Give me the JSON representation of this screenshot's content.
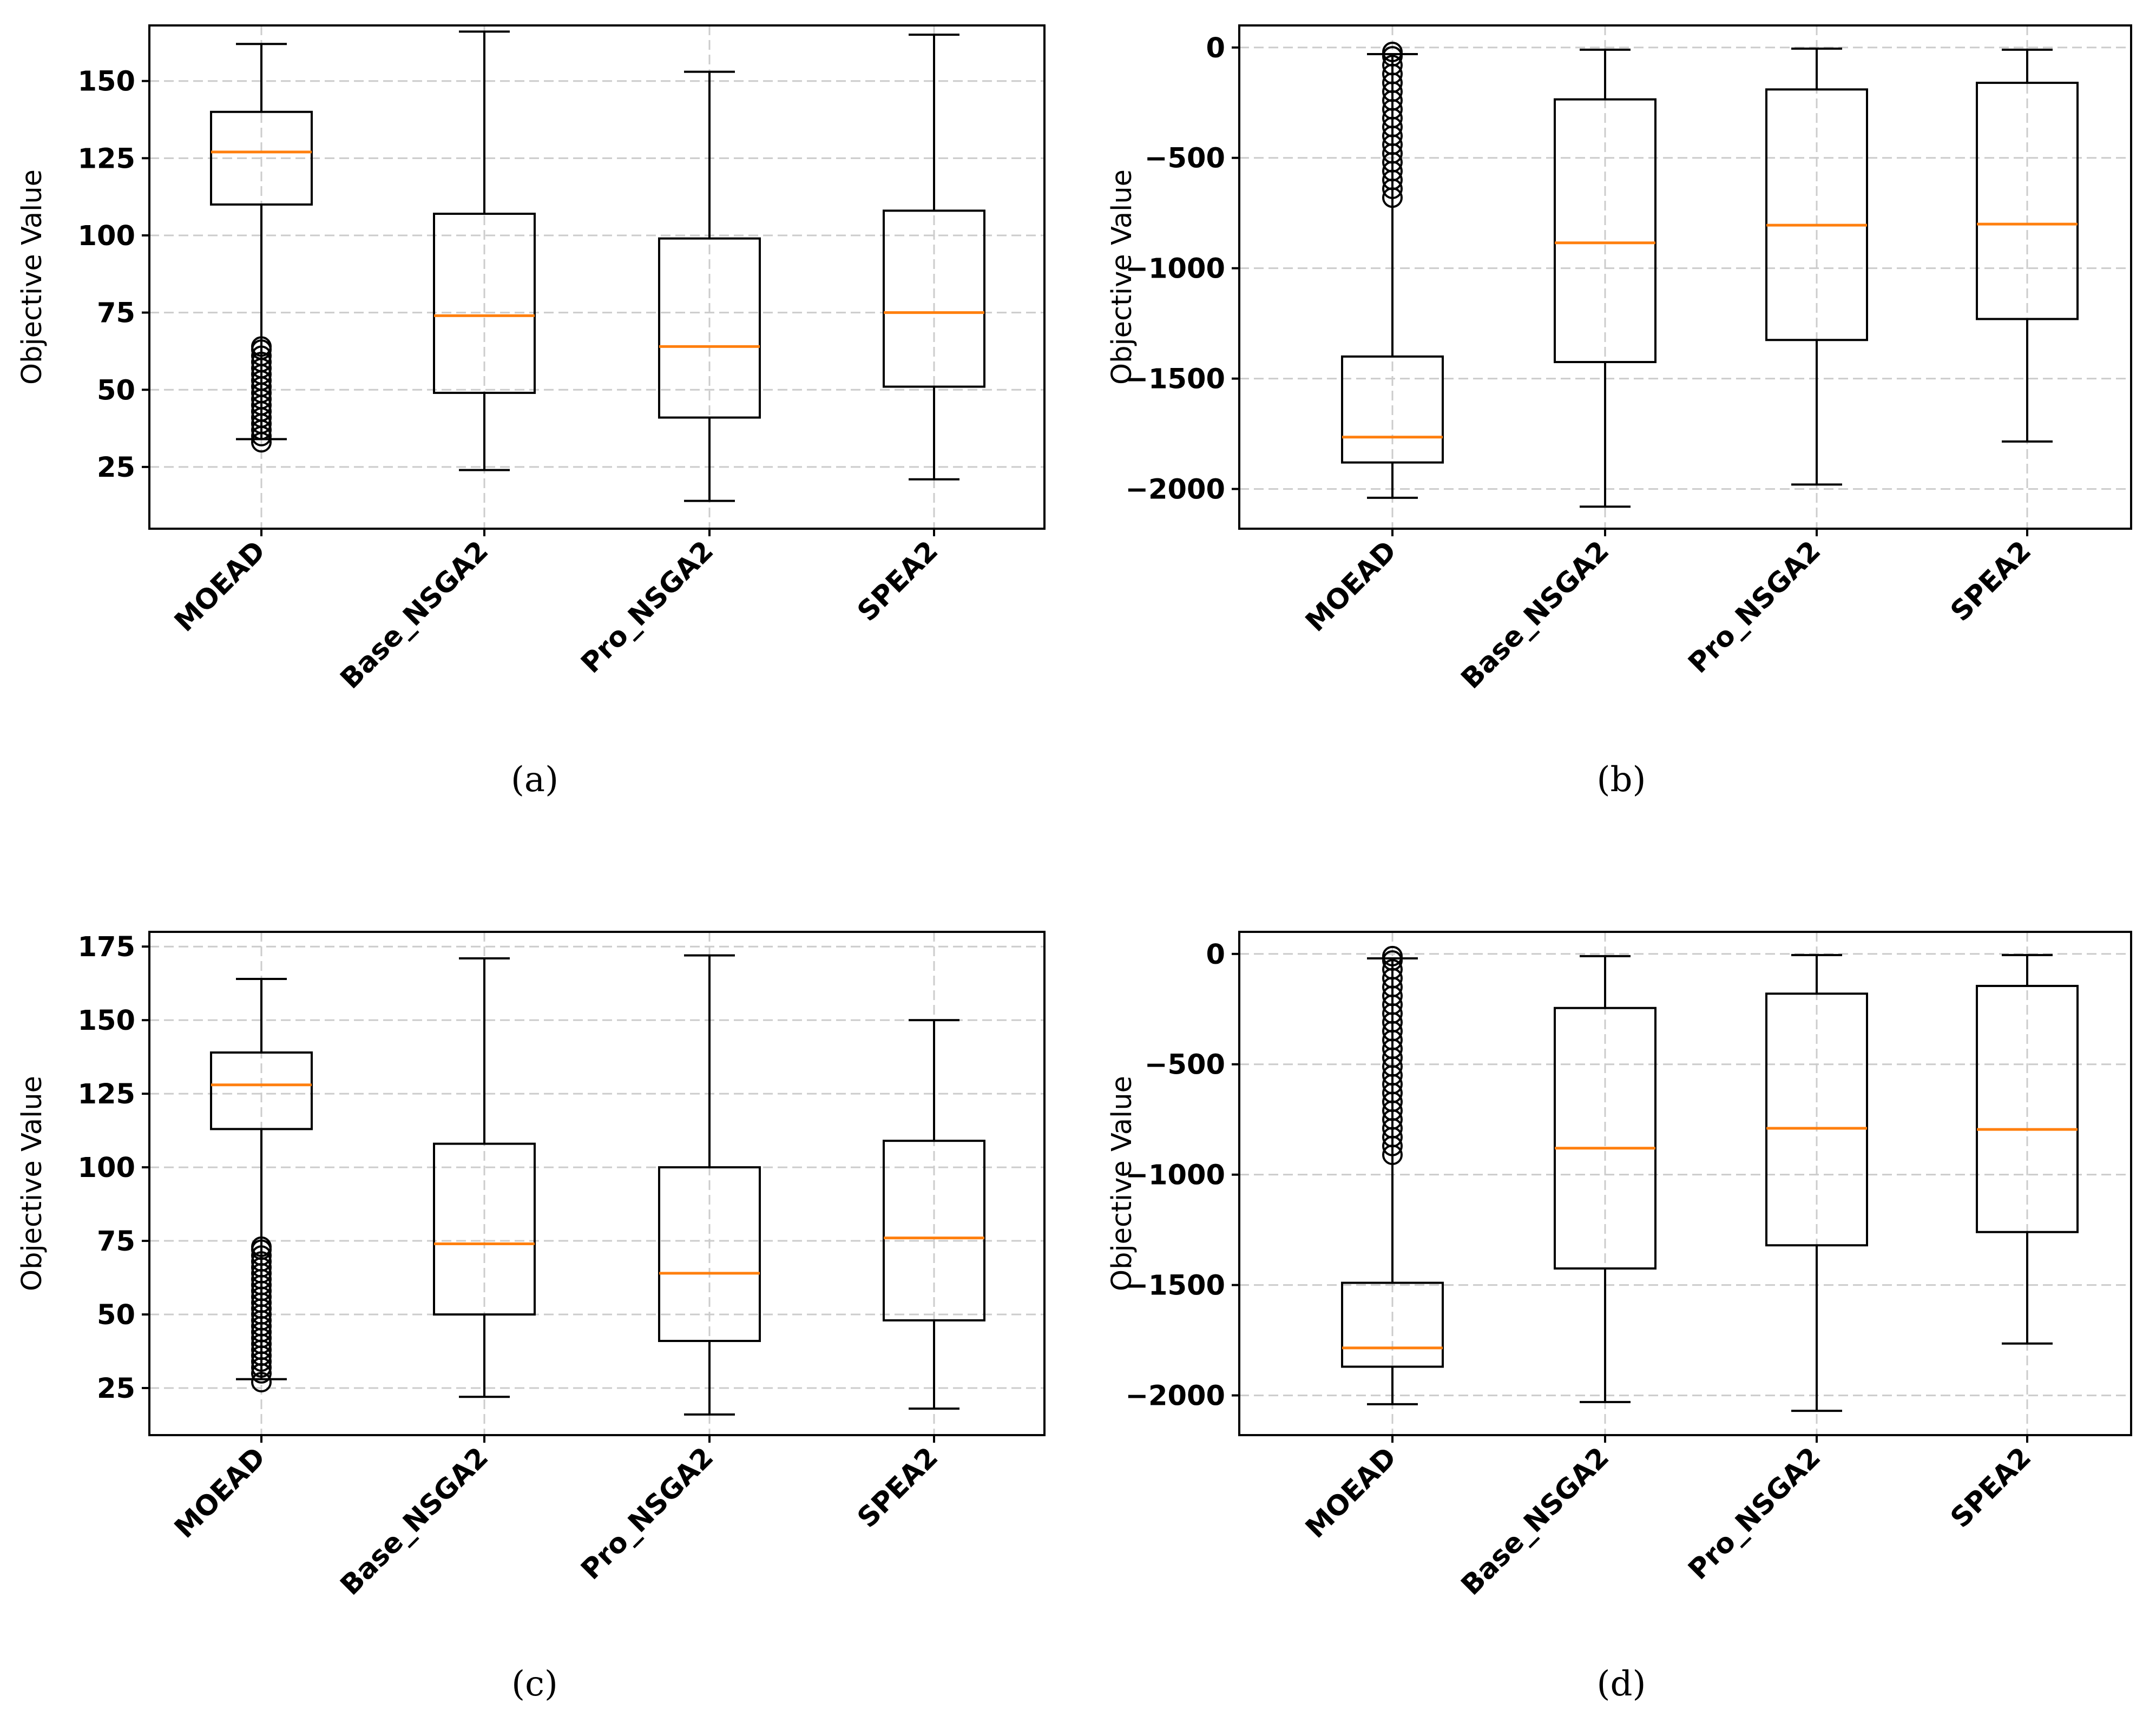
{
  "colors": {
    "median": "#ff7f0e",
    "box": "#000000",
    "grid": "#cccccc",
    "background": "#ffffff"
  },
  "chart_data": [
    {
      "type": "box",
      "caption": "(a)",
      "ylabel": "Objective Value",
      "ylim": [
        5,
        168
      ],
      "yticks": [
        {
          "value": 25,
          "label": "25"
        },
        {
          "value": 50,
          "label": "50"
        },
        {
          "value": 75,
          "label": "75"
        },
        {
          "value": 100,
          "label": "100"
        },
        {
          "value": 125,
          "label": "125"
        },
        {
          "value": 150,
          "label": "150"
        }
      ],
      "categories": [
        "MOEAD",
        "Base_NSGA2",
        "Pro_NSGA2",
        "SPEA2"
      ],
      "boxes": [
        {
          "whislo": 34,
          "q1": 110,
          "med": 127,
          "q3": 140,
          "whishi": 162,
          "fliers": [
            33,
            35,
            37,
            39,
            41,
            43,
            45,
            47,
            49,
            51,
            53,
            55,
            57,
            59,
            61,
            63,
            64
          ]
        },
        {
          "whislo": 24,
          "q1": 49,
          "med": 74,
          "q3": 107,
          "whishi": 166,
          "fliers": []
        },
        {
          "whislo": 14,
          "q1": 41,
          "med": 64,
          "q3": 99,
          "whishi": 153,
          "fliers": []
        },
        {
          "whislo": 21,
          "q1": 51,
          "med": 75,
          "q3": 108,
          "whishi": 165,
          "fliers": []
        }
      ]
    },
    {
      "type": "box",
      "caption": "(b)",
      "ylabel": "Objective Value",
      "ylim": [
        -2180,
        100
      ],
      "yticks": [
        {
          "value": -2000,
          "label": "−2000"
        },
        {
          "value": -1500,
          "label": "−1500"
        },
        {
          "value": -1000,
          "label": "−1000"
        },
        {
          "value": -500,
          "label": "−500"
        },
        {
          "value": 0,
          "label": "0"
        }
      ],
      "categories": [
        "MOEAD",
        "Base_NSGA2",
        "Pro_NSGA2",
        "SPEA2"
      ],
      "boxes": [
        {
          "whislo": -2040,
          "q1": -1880,
          "med": -1765,
          "q3": -1400,
          "whishi": -30,
          "fliers": [
            -680,
            -640,
            -600,
            -560,
            -520,
            -480,
            -440,
            -400,
            -360,
            -320,
            -280,
            -240,
            -200,
            -160,
            -120,
            -80,
            -40,
            -20
          ]
        },
        {
          "whislo": -2080,
          "q1": -1425,
          "med": -885,
          "q3": -235,
          "whishi": -10,
          "fliers": []
        },
        {
          "whislo": -1980,
          "q1": -1325,
          "med": -805,
          "q3": -190,
          "whishi": -5,
          "fliers": []
        },
        {
          "whislo": -1785,
          "q1": -1230,
          "med": -800,
          "q3": -160,
          "whishi": -10,
          "fliers": []
        }
      ]
    },
    {
      "type": "box",
      "caption": "(c)",
      "ylabel": "Objective Value",
      "ylim": [
        9,
        180
      ],
      "yticks": [
        {
          "value": 25,
          "label": "25"
        },
        {
          "value": 50,
          "label": "50"
        },
        {
          "value": 75,
          "label": "75"
        },
        {
          "value": 100,
          "label": "100"
        },
        {
          "value": 125,
          "label": "125"
        },
        {
          "value": 150,
          "label": "150"
        },
        {
          "value": 175,
          "label": "175"
        }
      ],
      "categories": [
        "MOEAD",
        "Base_NSGA2",
        "Pro_NSGA2",
        "SPEA2"
      ],
      "boxes": [
        {
          "whislo": 28,
          "q1": 113,
          "med": 128,
          "q3": 139,
          "whishi": 164,
          "fliers": [
            27,
            30,
            32,
            34,
            36,
            38,
            40,
            42,
            44,
            46,
            48,
            50,
            52,
            54,
            56,
            58,
            60,
            62,
            64,
            66,
            68,
            70,
            72,
            73
          ]
        },
        {
          "whislo": 22,
          "q1": 50,
          "med": 74,
          "q3": 108,
          "whishi": 171,
          "fliers": []
        },
        {
          "whislo": 16,
          "q1": 41,
          "med": 64,
          "q3": 100,
          "whishi": 172,
          "fliers": []
        },
        {
          "whislo": 18,
          "q1": 48,
          "med": 76,
          "q3": 109,
          "whishi": 150,
          "fliers": []
        }
      ]
    },
    {
      "type": "box",
      "caption": "(d)",
      "ylabel": "Objective Value",
      "ylim": [
        -2180,
        100
      ],
      "yticks": [
        {
          "value": -2000,
          "label": "−2000"
        },
        {
          "value": -1500,
          "label": "−1500"
        },
        {
          "value": -1000,
          "label": "−1000"
        },
        {
          "value": -500,
          "label": "−500"
        },
        {
          "value": 0,
          "label": "0"
        }
      ],
      "categories": [
        "MOEAD",
        "Base_NSGA2",
        "Pro_NSGA2",
        "SPEA2"
      ],
      "boxes": [
        {
          "whislo": -2040,
          "q1": -1870,
          "med": -1785,
          "q3": -1490,
          "whishi": -20,
          "fliers": [
            -910,
            -870,
            -830,
            -790,
            -750,
            -710,
            -670,
            -630,
            -590,
            -550,
            -510,
            -470,
            -430,
            -390,
            -350,
            -310,
            -270,
            -230,
            -190,
            -150,
            -110,
            -70,
            -30,
            -10
          ]
        },
        {
          "whislo": -2030,
          "q1": -1425,
          "med": -880,
          "q3": -245,
          "whishi": -10,
          "fliers": []
        },
        {
          "whislo": -2070,
          "q1": -1320,
          "med": -790,
          "q3": -180,
          "whishi": -5,
          "fliers": []
        },
        {
          "whislo": -1765,
          "q1": -1260,
          "med": -795,
          "q3": -145,
          "whishi": -5,
          "fliers": []
        }
      ]
    }
  ]
}
